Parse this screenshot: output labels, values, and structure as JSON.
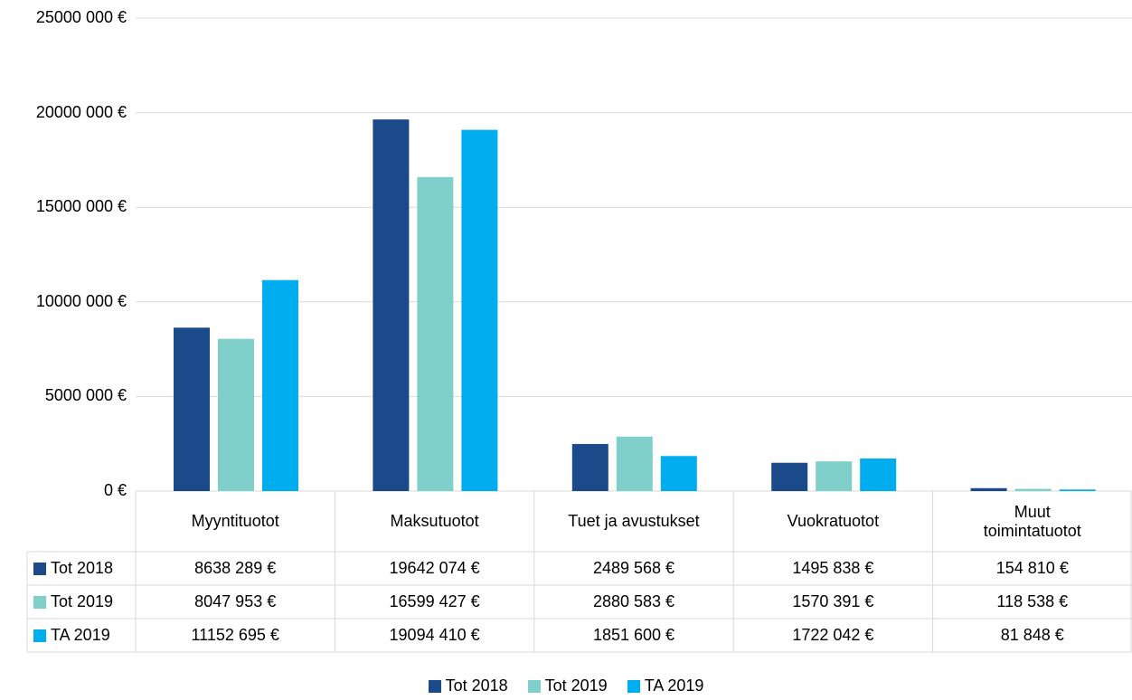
{
  "chart_data": {
    "type": "bar",
    "categories": [
      "Myyntituotot",
      "Maksutuotot",
      "Tuet ja avustukset",
      "Vuokratuotot",
      "Muut toimintatuotot"
    ],
    "series": [
      {
        "name": "Tot 2018",
        "color": "#1b4a8b",
        "values": [
          8638289,
          19642074,
          2489568,
          1495838,
          154810
        ],
        "value_labels": [
          "8638 289 €",
          "19642 074 €",
          "2489 568 €",
          "1495 838 €",
          "154 810 €"
        ]
      },
      {
        "name": "Tot 2019",
        "color": "#7fcfca",
        "values": [
          8047953,
          16599427,
          2880583,
          1570391,
          118538
        ],
        "value_labels": [
          "8047 953 €",
          "16599 427 €",
          "2880 583 €",
          "1570 391 €",
          "118 538 €"
        ]
      },
      {
        "name": "TA 2019",
        "color": "#00adef",
        "values": [
          11152695,
          19094410,
          1851600,
          1722042,
          81848
        ],
        "value_labels": [
          "11152 695 €",
          "19094 410 €",
          "1851 600 €",
          "1722 042 €",
          "81 848 €"
        ]
      }
    ],
    "ylim": [
      0,
      25000000
    ],
    "yticks": [
      {
        "value": 0,
        "label": "0 €"
      },
      {
        "value": 5000000,
        "label": "5000 000 €"
      },
      {
        "value": 10000000,
        "label": "10000 000 €"
      },
      {
        "value": 15000000,
        "label": "15000 000 €"
      },
      {
        "value": 20000000,
        "label": "20000 000 €"
      },
      {
        "value": 25000000,
        "label": "25000 000 €"
      }
    ],
    "grid": true,
    "legend": "bottom"
  }
}
